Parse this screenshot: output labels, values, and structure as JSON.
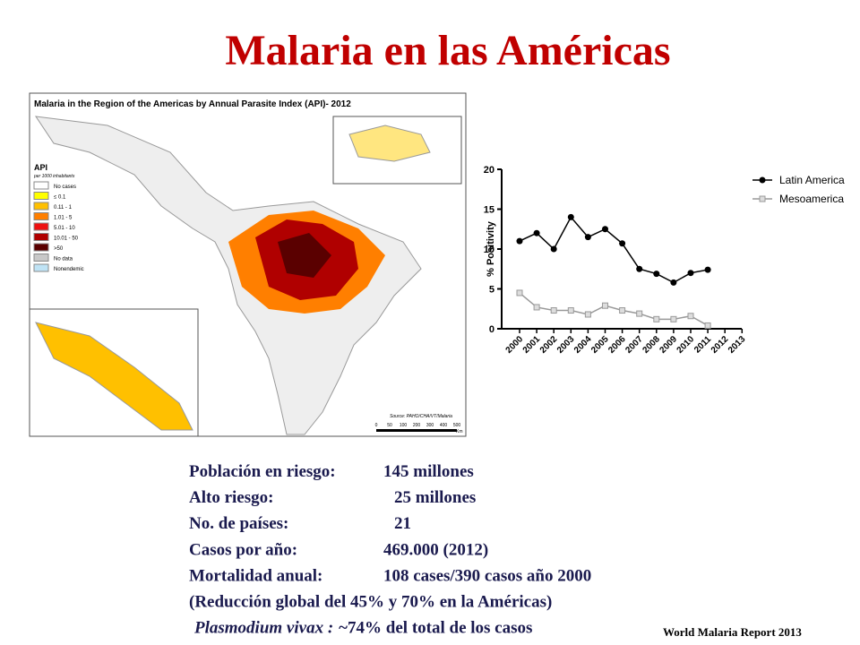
{
  "title": "Malaria en las Américas",
  "map": {
    "title": "Malaria in the Region of the Americas by Annual Parasite Index (API)- 2012",
    "legend_title": "API",
    "legend_subtitle": "per 1000 inhabitants",
    "legend": [
      {
        "label": "No cases",
        "color": "#ffffff"
      },
      {
        "label": "≤ 0.1",
        "color": "#ffff00"
      },
      {
        "label": "0.11 - 1",
        "color": "#ffc000"
      },
      {
        "label": "1.01 - 5",
        "color": "#ff7f00"
      },
      {
        "label": "5.01 - 10",
        "color": "#ee1111"
      },
      {
        "label": "10.01 - 50",
        "color": "#b00000"
      },
      {
        "label": ">50",
        "color": "#5a0000"
      },
      {
        "label": "No data",
        "color": "#c8c8c8"
      },
      {
        "label": "Nonendemic",
        "color": "#bfe3f5"
      }
    ],
    "source": "Source: PAHO/CHA/VT/Malaria",
    "scale": [
      "0",
      "50",
      "100",
      "200",
      "300",
      "400",
      "500"
    ],
    "scale_unit": "Km"
  },
  "chart_data": {
    "type": "line",
    "ylabel": "% Positivity",
    "categories": [
      "2000",
      "2001",
      "2002",
      "2003",
      "2004",
      "2005",
      "2006",
      "2007",
      "2008",
      "2009",
      "2010",
      "2011",
      "2012",
      "2013"
    ],
    "series": [
      {
        "name": "Latin America",
        "color": "#000000",
        "marker": "circle",
        "values": [
          11,
          12,
          10,
          14,
          11.5,
          12.5,
          10.7,
          7.5,
          6.9,
          5.8,
          7,
          7.4,
          null,
          null
        ]
      },
      {
        "name": "Mesoamerica",
        "color": "#999999",
        "marker": "square",
        "values": [
          4.5,
          2.7,
          2.3,
          2.3,
          1.8,
          2.9,
          2.3,
          1.9,
          1.2,
          1.2,
          1.6,
          0.4,
          null,
          null
        ]
      }
    ],
    "ylim": [
      0,
      20
    ],
    "yticks": [
      0,
      5,
      10,
      15,
      20
    ]
  },
  "stats": [
    {
      "label": "Población en riesgo:",
      "value": "145 millones"
    },
    {
      "label": "Alto riesgo:",
      "value": "25 millones"
    },
    {
      "label": "No. de países:",
      "value": "21"
    },
    {
      "label": "Casos por año:",
      "value": "469.000 (2012)"
    },
    {
      "label": "Mortalidad anual:",
      "value": "108 cases/390 casos año 2000"
    },
    {
      "label": "(Reducción global del 45% y 70% en la Américas)"
    },
    {
      "label": "Plasmodium vivax :",
      "value": "~74% del total de los casos"
    }
  ],
  "source": "World Malaria Report 2013"
}
